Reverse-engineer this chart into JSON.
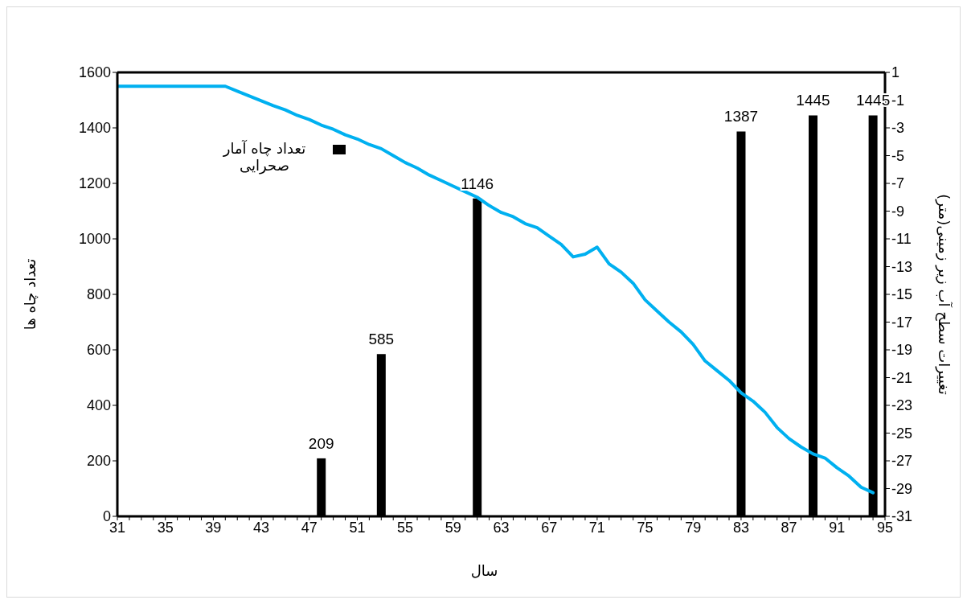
{
  "chart_data": {
    "type": "bar",
    "xlabel": "سال",
    "ylabel": "تعداد چاه ها",
    "y2label": "تغییرات سطح آب زیر زمینی(متر)",
    "categories": [
      "31",
      null,
      null,
      null,
      "35",
      null,
      null,
      null,
      "39",
      null,
      null,
      null,
      "43",
      null,
      null,
      null,
      "47",
      null,
      null,
      null,
      "51",
      null,
      null,
      null,
      "55",
      null,
      null,
      null,
      "59",
      null,
      null,
      null,
      "63",
      null,
      null,
      null,
      "67",
      null,
      null,
      null,
      "71",
      null,
      null,
      null,
      "75",
      null,
      null,
      null,
      "79",
      null,
      null,
      null,
      "83",
      null,
      null,
      null,
      "87",
      null,
      null,
      null,
      "91",
      null,
      null,
      null,
      "95"
    ],
    "series": [
      {
        "name": "تعداد چاه آمار صحرایی",
        "color": "#000000",
        "value_labels": [
          null,
          null,
          null,
          null,
          null,
          null,
          null,
          null,
          null,
          null,
          null,
          null,
          null,
          null,
          null,
          null,
          null,
          "209",
          null,
          null,
          null,
          null,
          "585",
          null,
          null,
          null,
          null,
          null,
          null,
          null,
          "1146",
          null,
          null,
          null,
          null,
          null,
          null,
          null,
          null,
          null,
          null,
          null,
          null,
          null,
          null,
          null,
          null,
          null,
          null,
          null,
          null,
          null,
          "1387",
          null,
          null,
          null,
          null,
          null,
          "1445",
          null,
          null,
          null,
          null,
          "1445",
          null
        ],
        "values": [
          null,
          null,
          null,
          null,
          null,
          null,
          null,
          null,
          null,
          null,
          null,
          null,
          null,
          null,
          null,
          null,
          null,
          209,
          null,
          null,
          null,
          null,
          585,
          null,
          null,
          null,
          null,
          null,
          null,
          null,
          1146,
          null,
          null,
          null,
          null,
          null,
          null,
          null,
          null,
          null,
          null,
          null,
          null,
          null,
          null,
          null,
          null,
          null,
          null,
          null,
          null,
          null,
          1387,
          null,
          null,
          null,
          null,
          null,
          1445,
          null,
          null,
          null,
          null,
          1445,
          null
        ]
      },
      {
        "type": "line",
        "axis": "y2",
        "color": "#00b0f0",
        "values": [
          0,
          0,
          0,
          0,
          0,
          0,
          0,
          0,
          0,
          0,
          -0.35,
          -0.7,
          -1.05,
          -1.4,
          -1.7,
          -2.1,
          -2.4,
          -2.8,
          -3.1,
          -3.5,
          -3.8,
          -4.2,
          -4.5,
          -5.0,
          -5.5,
          -5.9,
          -6.4,
          -6.8,
          -7.2,
          -7.6,
          -8.0,
          -8.6,
          -9.1,
          -9.4,
          -9.9,
          -10.2,
          -10.8,
          -11.4,
          -12.3,
          -12.1,
          -11.6,
          -12.8,
          -13.4,
          -14.2,
          -15.4,
          -16.2,
          -17.0,
          -17.7,
          -18.6,
          -19.8,
          -20.5,
          -21.2,
          -22.1,
          -22.7,
          -23.5,
          -24.6,
          -25.4,
          -26.0,
          -26.5,
          -26.8,
          -27.5,
          -28.1,
          -28.9,
          -29.3,
          null
        ]
      }
    ],
    "ylim": [
      0,
      1600
    ],
    "yticks": [
      0,
      200,
      400,
      600,
      800,
      1000,
      1200,
      1400,
      1600
    ],
    "y2lim": [
      -31,
      1
    ],
    "y2ticks": [
      1,
      -1,
      -3,
      -5,
      -7,
      -9,
      -11,
      -13,
      -15,
      -17,
      -19,
      -21,
      -23,
      -25,
      -27,
      -29,
      -31
    ],
    "legend": "top left",
    "grid": false,
    "marker": "none"
  }
}
